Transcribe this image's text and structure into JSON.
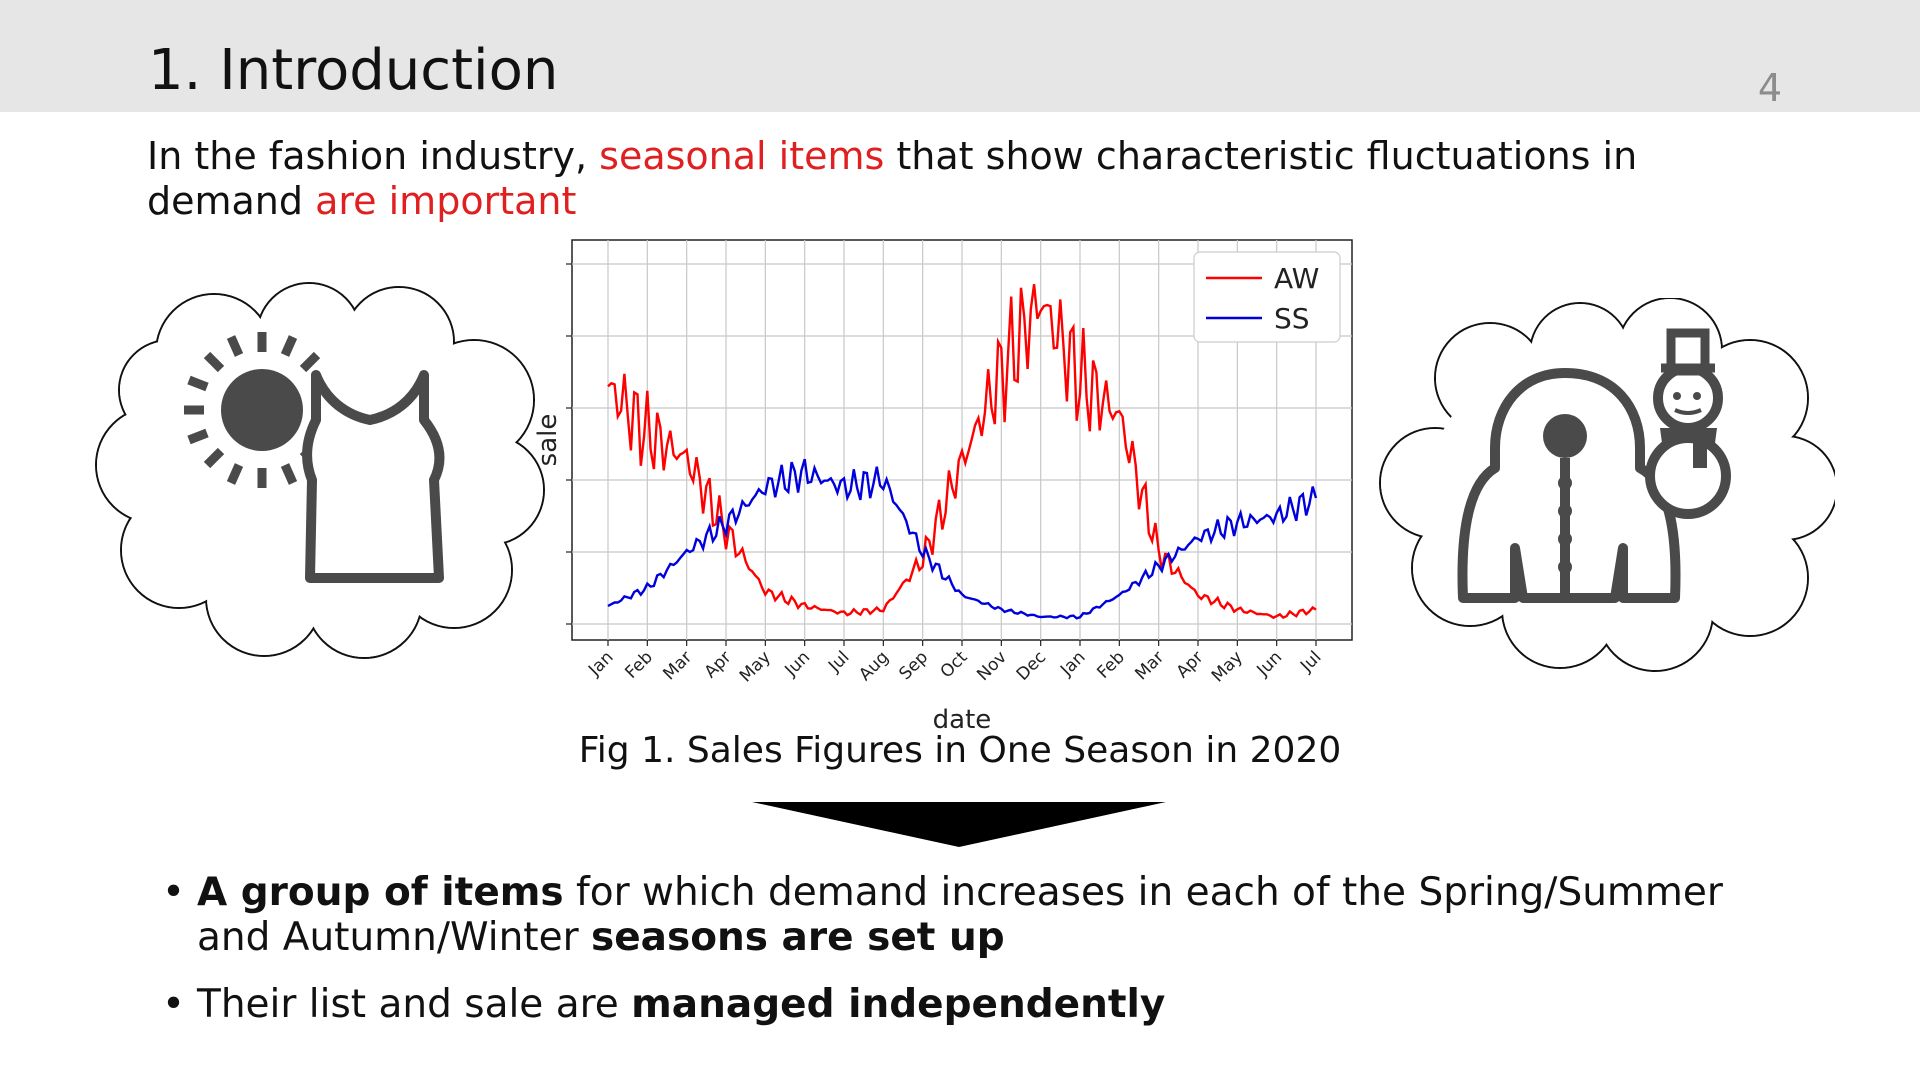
{
  "slide": {
    "title": "1. Introduction",
    "page_number": "4"
  },
  "intro": {
    "part1": "In the fashion industry, ",
    "part2": "seasonal items",
    "part3": " that show characteristic fluctuations in demand ",
    "part4": "are important"
  },
  "colors": {
    "emphasis": "#e02020",
    "aw": "#ff0000",
    "ss": "#0000dd",
    "header_bg": "#e6e6e6",
    "icon": "#4a4a4a"
  },
  "icons": {
    "left_cloud": [
      "sun-icon",
      "tank-top-icon"
    ],
    "right_cloud": [
      "hooded-coat-icon",
      "snowman-icon"
    ],
    "arrow": "down-arrow-icon"
  },
  "chart_data": {
    "type": "line",
    "title": "",
    "xlabel": "date",
    "ylabel": "sale",
    "categories": [
      "Jan",
      "Feb",
      "Mar",
      "Apr",
      "May",
      "Jun",
      "Jul",
      "Aug",
      "Sep",
      "Oct",
      "Nov",
      "Dec",
      "Jan",
      "Feb",
      "Mar",
      "Apr",
      "May",
      "Jun",
      "Jul"
    ],
    "x": [
      0,
      1,
      2,
      3,
      4,
      5,
      6,
      7,
      8,
      9,
      10,
      11,
      12,
      13,
      14,
      15,
      16,
      17,
      18
    ],
    "ylim": [
      0,
      100
    ],
    "grid": true,
    "legend_position": "top-right",
    "series": [
      {
        "name": "AW",
        "color": "#ff0000",
        "values": [
          66,
          53,
          46,
          26,
          9,
          5,
          3,
          4,
          18,
          45,
          70,
          90,
          68,
          58,
          20,
          8,
          4,
          2,
          4
        ]
      },
      {
        "name": "SS",
        "color": "#0000dd",
        "values": [
          5,
          10,
          20,
          28,
          38,
          42,
          38,
          40,
          20,
          8,
          4,
          2,
          2,
          8,
          16,
          24,
          28,
          30,
          35
        ]
      }
    ]
  },
  "caption": "Fig 1. Sales Figures in One Season in 2020",
  "bullets": [
    {
      "bold1": "A group of items",
      "text1": " for which demand increases in each of the Spring/Summer and Autumn/Winter ",
      "bold2": "seasons are set up",
      "text2": ""
    },
    {
      "bold1": "",
      "text1": "Their list and sale are ",
      "bold2": "managed independently",
      "text2": ""
    }
  ],
  "bullet_symbol": "•"
}
